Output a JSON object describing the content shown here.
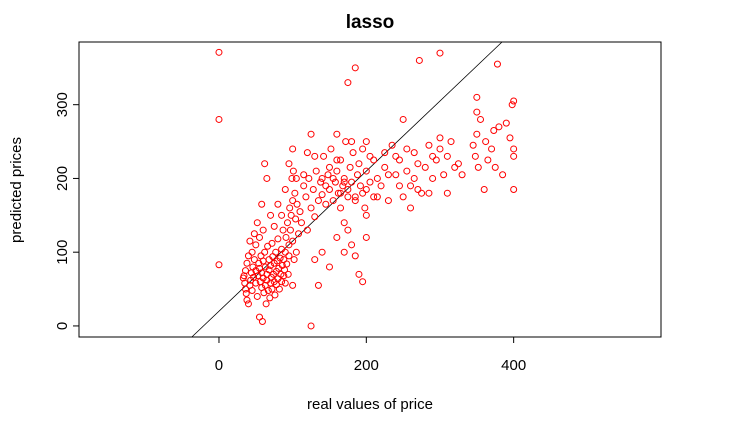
{
  "chart_data": {
    "type": "scatter",
    "title": "lasso",
    "xlabel": "real values of price",
    "ylabel": "predicted prices",
    "xlim": [
      -190,
      600
    ],
    "ylim": [
      -15,
      385
    ],
    "xticks": [
      0,
      200,
      400
    ],
    "yticks": [
      0,
      100,
      200,
      300
    ],
    "point_color": "#ff0000",
    "reference_line": {
      "intercept": 20,
      "slope": 0.95
    },
    "series": [
      {
        "points": [
          [
            0,
            371
          ],
          [
            0,
            280
          ],
          [
            0,
            83
          ],
          [
            33,
            65
          ],
          [
            35,
            58
          ],
          [
            36,
            50
          ],
          [
            37,
            44
          ],
          [
            38,
            35
          ],
          [
            40,
            30
          ],
          [
            42,
            55
          ],
          [
            43,
            62
          ],
          [
            44,
            72
          ],
          [
            45,
            48
          ],
          [
            46,
            80
          ],
          [
            47,
            66
          ],
          [
            48,
            90
          ],
          [
            50,
            58
          ],
          [
            50,
            75
          ],
          [
            52,
            40
          ],
          [
            53,
            68
          ],
          [
            54,
            85
          ],
          [
            55,
            78
          ],
          [
            55,
            12
          ],
          [
            56,
            60
          ],
          [
            57,
            95
          ],
          [
            58,
            52
          ],
          [
            58,
            72
          ],
          [
            59,
            6
          ],
          [
            60,
            88
          ],
          [
            60,
            65
          ],
          [
            61,
            45
          ],
          [
            62,
            100
          ],
          [
            63,
            55
          ],
          [
            63,
            80
          ],
          [
            64,
            30
          ],
          [
            65,
            70
          ],
          [
            65,
            62
          ],
          [
            66,
            108
          ],
          [
            67,
            48
          ],
          [
            68,
            90
          ],
          [
            68,
            76
          ],
          [
            69,
            38
          ],
          [
            70,
            58
          ],
          [
            70,
            82
          ],
          [
            71,
            66
          ],
          [
            72,
            112
          ],
          [
            72,
            50
          ],
          [
            73,
            94
          ],
          [
            74,
            70
          ],
          [
            75,
            60
          ],
          [
            75,
            85
          ],
          [
            76,
            42
          ],
          [
            77,
            100
          ],
          [
            78,
            74
          ],
          [
            78,
            56
          ],
          [
            79,
            88
          ],
          [
            80,
            64
          ],
          [
            80,
            118
          ],
          [
            81,
            78
          ],
          [
            82,
            50
          ],
          [
            83,
            92
          ],
          [
            84,
            70
          ],
          [
            85,
            60
          ],
          [
            85,
            104
          ],
          [
            86,
            82
          ],
          [
            87,
            130
          ],
          [
            88,
            68
          ],
          [
            88,
            90
          ],
          [
            89,
            76
          ],
          [
            90,
            58
          ],
          [
            90,
            100
          ],
          [
            91,
            120
          ],
          [
            92,
            84
          ],
          [
            93,
            140
          ],
          [
            94,
            70
          ],
          [
            95,
            95
          ],
          [
            95,
            110
          ],
          [
            96,
            160
          ],
          [
            97,
            130
          ],
          [
            98,
            150
          ],
          [
            99,
            200
          ],
          [
            100,
            115
          ],
          [
            100,
            170
          ],
          [
            100,
            55
          ],
          [
            101,
            210
          ],
          [
            102,
            90
          ],
          [
            103,
            180
          ],
          [
            104,
            145
          ],
          [
            105,
            100
          ],
          [
            106,
            165
          ],
          [
            108,
            125
          ],
          [
            110,
            155
          ],
          [
            112,
            140
          ],
          [
            115,
            190
          ],
          [
            118,
            175
          ],
          [
            120,
            130
          ],
          [
            122,
            200
          ],
          [
            125,
            160
          ],
          [
            128,
            185
          ],
          [
            130,
            148
          ],
          [
            132,
            210
          ],
          [
            135,
            170
          ],
          [
            138,
            195
          ],
          [
            140,
            178
          ],
          [
            142,
            230
          ],
          [
            145,
            165
          ],
          [
            148,
            205
          ],
          [
            150,
            185
          ],
          [
            152,
            240
          ],
          [
            155,
            170
          ],
          [
            158,
            195
          ],
          [
            160,
            210
          ],
          [
            162,
            180
          ],
          [
            165,
            225
          ],
          [
            168,
            190
          ],
          [
            170,
            200
          ],
          [
            172,
            250
          ],
          [
            175,
            185
          ],
          [
            178,
            215
          ],
          [
            180,
            195
          ],
          [
            182,
            235
          ],
          [
            185,
            175
          ],
          [
            188,
            205
          ],
          [
            190,
            220
          ],
          [
            192,
            190
          ],
          [
            195,
            240
          ],
          [
            198,
            160
          ],
          [
            200,
            210
          ],
          [
            200,
            185
          ],
          [
            200,
            250
          ],
          [
            200,
            150
          ],
          [
            200,
            120
          ],
          [
            205,
            230
          ],
          [
            210,
            175
          ],
          [
            215,
            200
          ],
          [
            220,
            190
          ],
          [
            225,
            215
          ],
          [
            230,
            170
          ],
          [
            235,
            245
          ],
          [
            240,
            205
          ],
          [
            245,
            225
          ],
          [
            250,
            175
          ],
          [
            250,
            280
          ],
          [
            255,
            210
          ],
          [
            260,
            190
          ],
          [
            265,
            235
          ],
          [
            270,
            220
          ],
          [
            272,
            360
          ],
          [
            275,
            180
          ],
          [
            280,
            215
          ],
          [
            285,
            245
          ],
          [
            290,
            200
          ],
          [
            295,
            225
          ],
          [
            300,
            370
          ],
          [
            300,
            240
          ],
          [
            305,
            205
          ],
          [
            310,
            230
          ],
          [
            315,
            250
          ],
          [
            320,
            215
          ],
          [
            325,
            220
          ],
          [
            330,
            205
          ],
          [
            345,
            245
          ],
          [
            348,
            230
          ],
          [
            350,
            260
          ],
          [
            350,
            290
          ],
          [
            350,
            310
          ],
          [
            352,
            215
          ],
          [
            355,
            280
          ],
          [
            360,
            185
          ],
          [
            362,
            250
          ],
          [
            365,
            225
          ],
          [
            370,
            240
          ],
          [
            373,
            265
          ],
          [
            375,
            215
          ],
          [
            378,
            355
          ],
          [
            380,
            270
          ],
          [
            385,
            205
          ],
          [
            390,
            275
          ],
          [
            395,
            255
          ],
          [
            398,
            300
          ],
          [
            400,
            305
          ],
          [
            400,
            240
          ],
          [
            400,
            185
          ],
          [
            400,
            230
          ],
          [
            95,
            220
          ],
          [
            100,
            240
          ],
          [
            105,
            200
          ],
          [
            115,
            205
          ],
          [
            120,
            235
          ],
          [
            125,
            260
          ],
          [
            130,
            230
          ],
          [
            140,
            200
          ],
          [
            150,
            215
          ],
          [
            160,
            225
          ],
          [
            165,
            160
          ],
          [
            170,
            140
          ],
          [
            175,
            130
          ],
          [
            180,
            110
          ],
          [
            185,
            95
          ],
          [
            190,
            70
          ],
          [
            195,
            60
          ],
          [
            150,
            80
          ],
          [
            140,
            100
          ],
          [
            130,
            90
          ],
          [
            135,
            55
          ],
          [
            125,
            0
          ],
          [
            160,
            120
          ],
          [
            170,
            100
          ],
          [
            180,
            250
          ],
          [
            175,
            330
          ],
          [
            185,
            350
          ],
          [
            160,
            260
          ],
          [
            170,
            195
          ],
          [
            155,
            200
          ],
          [
            145,
            190
          ],
          [
            165,
            180
          ],
          [
            175,
            175
          ],
          [
            185,
            170
          ],
          [
            195,
            180
          ],
          [
            205,
            195
          ],
          [
            210,
            225
          ],
          [
            215,
            175
          ],
          [
            225,
            235
          ],
          [
            230,
            205
          ],
          [
            240,
            230
          ],
          [
            245,
            190
          ],
          [
            255,
            240
          ],
          [
            260,
            160
          ],
          [
            265,
            200
          ],
          [
            270,
            185
          ],
          [
            285,
            180
          ],
          [
            290,
            230
          ],
          [
            300,
            255
          ],
          [
            310,
            180
          ],
          [
            70,
            150
          ],
          [
            75,
            135
          ],
          [
            80,
            165
          ],
          [
            85,
            150
          ],
          [
            90,
            185
          ],
          [
            60,
            130
          ],
          [
            55,
            120
          ],
          [
            50,
            110
          ],
          [
            45,
            100
          ],
          [
            65,
            200
          ],
          [
            62,
            220
          ],
          [
            58,
            165
          ],
          [
            52,
            140
          ],
          [
            48,
            125
          ],
          [
            42,
            115
          ],
          [
            40,
            95
          ],
          [
            38,
            85
          ],
          [
            36,
            75
          ],
          [
            34,
            68
          ]
        ]
      }
    ]
  }
}
